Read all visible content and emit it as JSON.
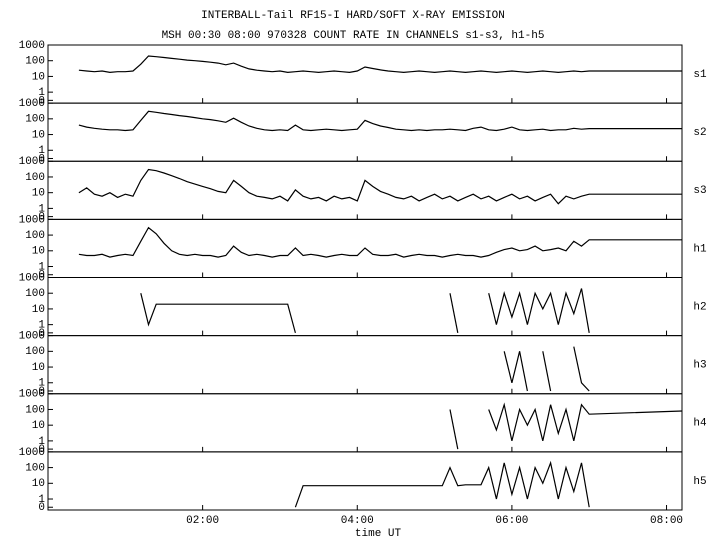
{
  "chart_data": {
    "type": "line",
    "title": "INTERBALL-Tail RF15-I HARD/SOFT X-RAY EMISSION",
    "subtitle": "MSH 00:30 08:00 970328  COUNT RATE IN CHANNELS s1-s3, h1-h5",
    "xlabel": "time UT",
    "stacked": true,
    "yscale": "log",
    "x": [
      0.4,
      0.5,
      0.6,
      0.7,
      0.8,
      0.9,
      1.0,
      1.1,
      1.2,
      1.3,
      1.4,
      1.5,
      1.6,
      1.7,
      1.8,
      1.9,
      2.0,
      2.1,
      2.2,
      2.3,
      2.4,
      2.5,
      2.6,
      2.7,
      2.8,
      2.9,
      3.0,
      3.1,
      3.2,
      3.3,
      3.4,
      3.5,
      3.6,
      3.7,
      3.8,
      3.9,
      4.0,
      4.1,
      4.2,
      4.3,
      4.4,
      4.5,
      4.6,
      4.7,
      4.8,
      4.9,
      5.0,
      5.1,
      5.2,
      5.3,
      5.4,
      5.5,
      5.6,
      5.7,
      5.8,
      5.9,
      6.0,
      6.1,
      6.2,
      6.3,
      6.4,
      6.5,
      6.6,
      6.7,
      6.8,
      6.9,
      7.0,
      8.2
    ],
    "xlim": [
      0,
      8.2
    ],
    "xticks": [
      {
        "value": 2,
        "label": "02:00"
      },
      {
        "value": 4,
        "label": "04:00"
      },
      {
        "value": 6,
        "label": "06:00"
      },
      {
        "value": 8,
        "label": "08:00"
      }
    ],
    "ylim": [
      0.2,
      1000
    ],
    "yticks": [
      {
        "value": 0.3,
        "label": "0"
      },
      1,
      10,
      100,
      1000
    ],
    "series": [
      {
        "name": "s1",
        "color": "#000000",
        "values": [
          25,
          22,
          20,
          22,
          18,
          20,
          20,
          22,
          60,
          200,
          180,
          160,
          140,
          125,
          110,
          100,
          90,
          80,
          70,
          55,
          70,
          45,
          30,
          25,
          22,
          20,
          22,
          18,
          20,
          22,
          20,
          18,
          20,
          22,
          20,
          18,
          22,
          40,
          32,
          26,
          22,
          20,
          18,
          20,
          22,
          20,
          18,
          20,
          22,
          20,
          18,
          20,
          22,
          20,
          18,
          20,
          22,
          20,
          18,
          20,
          22,
          20,
          18,
          20,
          22,
          20,
          22,
          22
        ]
      },
      {
        "name": "s2",
        "color": "#000000",
        "values": [
          40,
          30,
          25,
          22,
          20,
          20,
          18,
          20,
          80,
          300,
          260,
          220,
          190,
          160,
          140,
          120,
          100,
          90,
          75,
          60,
          110,
          60,
          35,
          25,
          20,
          18,
          20,
          18,
          40,
          20,
          18,
          20,
          22,
          20,
          18,
          20,
          22,
          80,
          50,
          35,
          28,
          22,
          20,
          18,
          20,
          18,
          20,
          20,
          22,
          20,
          18,
          25,
          30,
          20,
          18,
          22,
          30,
          20,
          18,
          20,
          22,
          18,
          20,
          20,
          25,
          22,
          24,
          24
        ]
      },
      {
        "name": "s3",
        "color": "#000000",
        "values": [
          10,
          20,
          8,
          6,
          10,
          5,
          8,
          6,
          60,
          300,
          250,
          180,
          120,
          80,
          50,
          35,
          25,
          18,
          12,
          10,
          60,
          25,
          10,
          6,
          5,
          4,
          6,
          3,
          15,
          6,
          4,
          5,
          3,
          6,
          4,
          5,
          3,
          60,
          25,
          12,
          8,
          5,
          4,
          6,
          3,
          5,
          8,
          4,
          6,
          3,
          5,
          8,
          4,
          6,
          3,
          5,
          8,
          4,
          6,
          3,
          5,
          8,
          2,
          6,
          4,
          6,
          8,
          8
        ]
      },
      {
        "name": "h1",
        "color": "#000000",
        "values": [
          6,
          5,
          5,
          6,
          4,
          5,
          6,
          5,
          40,
          300,
          120,
          30,
          10,
          6,
          5,
          6,
          5,
          5,
          4,
          5,
          20,
          8,
          5,
          6,
          5,
          4,
          5,
          5,
          15,
          5,
          6,
          5,
          4,
          5,
          6,
          5,
          5,
          15,
          6,
          5,
          5,
          6,
          4,
          5,
          6,
          5,
          5,
          4,
          5,
          6,
          5,
          5,
          4,
          5,
          8,
          12,
          15,
          10,
          12,
          20,
          10,
          12,
          15,
          10,
          40,
          20,
          50,
          50
        ]
      },
      {
        "name": "h2",
        "color": "#000000",
        "values": [
          null,
          null,
          null,
          null,
          null,
          null,
          null,
          null,
          100,
          1,
          20,
          20,
          20,
          20,
          20,
          20,
          20,
          20,
          20,
          20,
          20,
          20,
          20,
          20,
          20,
          20,
          20,
          20,
          0.3,
          null,
          null,
          null,
          null,
          null,
          null,
          null,
          null,
          null,
          null,
          null,
          null,
          null,
          null,
          null,
          null,
          null,
          null,
          null,
          100,
          0.3,
          null,
          null,
          null,
          100,
          1,
          100,
          3,
          100,
          1,
          100,
          10,
          100,
          1,
          100,
          5,
          200,
          0.3,
          null
        ]
      },
      {
        "name": "h3",
        "color": "#000000",
        "values": [
          null,
          null,
          null,
          null,
          null,
          null,
          null,
          null,
          null,
          null,
          null,
          null,
          null,
          null,
          null,
          null,
          null,
          null,
          null,
          null,
          null,
          null,
          null,
          null,
          null,
          null,
          null,
          null,
          null,
          null,
          null,
          null,
          null,
          null,
          null,
          null,
          null,
          null,
          null,
          null,
          null,
          null,
          null,
          null,
          null,
          null,
          null,
          null,
          null,
          null,
          null,
          null,
          null,
          null,
          null,
          100,
          1,
          100,
          0.3,
          null,
          100,
          0.3,
          null,
          null,
          200,
          1,
          0.3,
          null
        ]
      },
      {
        "name": "h4",
        "color": "#000000",
        "values": [
          null,
          null,
          null,
          null,
          null,
          null,
          null,
          null,
          null,
          null,
          null,
          null,
          null,
          null,
          null,
          null,
          null,
          null,
          null,
          null,
          null,
          null,
          null,
          null,
          null,
          null,
          null,
          null,
          null,
          null,
          null,
          null,
          null,
          null,
          null,
          null,
          null,
          null,
          null,
          null,
          null,
          null,
          null,
          null,
          null,
          null,
          null,
          null,
          100,
          0.3,
          null,
          null,
          null,
          100,
          5,
          200,
          1,
          100,
          10,
          100,
          1,
          200,
          3,
          100,
          1,
          200,
          50,
          80
        ]
      },
      {
        "name": "h5",
        "color": "#000000",
        "values": [
          null,
          null,
          null,
          null,
          null,
          null,
          null,
          null,
          null,
          null,
          null,
          null,
          null,
          null,
          null,
          null,
          null,
          null,
          null,
          null,
          null,
          null,
          null,
          null,
          null,
          null,
          null,
          null,
          0.3,
          7,
          7,
          7,
          7,
          7,
          7,
          7,
          7,
          7,
          7,
          7,
          7,
          7,
          7,
          7,
          7,
          7,
          7,
          7,
          100,
          7,
          8,
          8,
          8,
          100,
          1,
          200,
          2,
          100,
          1,
          100,
          10,
          200,
          1,
          100,
          3,
          200,
          0.3,
          null
        ]
      }
    ]
  }
}
